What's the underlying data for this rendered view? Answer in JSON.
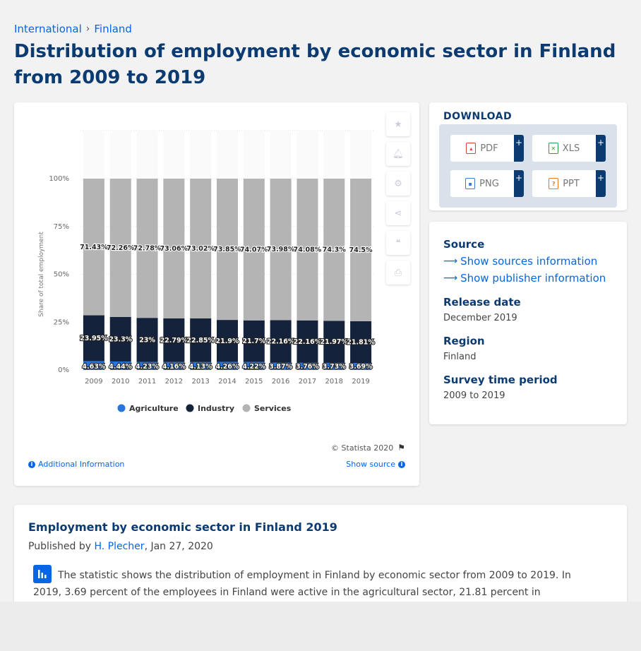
{
  "breadcrumb": {
    "items": [
      "International",
      "Finland"
    ],
    "separator": "›"
  },
  "page_title": "Distribution of employment by economic sector in Finland from 2009 to 2019",
  "chart_data": {
    "type": "bar",
    "stacked": true,
    "title": "",
    "xlabel": "",
    "ylabel": "Share of total employment",
    "ylim": [
      0,
      100
    ],
    "y_ticks": [
      "0%",
      "25%",
      "50%",
      "75%",
      "100%"
    ],
    "categories": [
      "2009",
      "2010",
      "2011",
      "2012",
      "2013",
      "2014",
      "2015",
      "2016",
      "2017",
      "2018",
      "2019"
    ],
    "series": [
      {
        "name": "Agriculture",
        "color": "#2876dd",
        "values": [
          4.63,
          4.44,
          4.23,
          4.16,
          4.13,
          4.26,
          4.22,
          3.87,
          3.76,
          3.73,
          3.69
        ],
        "labels": [
          "4.63%",
          "4.44%",
          "4.23%",
          "4.16%",
          "4.13%",
          "4.26%",
          "4.22%",
          "3.87%",
          "3.76%",
          "3.73%",
          "3.69%"
        ]
      },
      {
        "name": "Industry",
        "color": "#14223c",
        "values": [
          23.95,
          23.3,
          23,
          22.79,
          22.85,
          21.9,
          21.7,
          22.16,
          22.16,
          21.97,
          21.81
        ],
        "labels": [
          "23.95%",
          "23.3%",
          "23%",
          "22.79%",
          "22.85%",
          "21.9%",
          "21.7%",
          "22.16%",
          "22.16%",
          "21.97%",
          "21.81%"
        ]
      },
      {
        "name": "Services",
        "color": "#b4b4b4",
        "values": [
          71.43,
          72.26,
          72.78,
          73.06,
          73.02,
          73.85,
          74.07,
          73.98,
          74.08,
          74.3,
          74.5
        ],
        "labels": [
          "71.43%",
          "72.26%",
          "72.78%",
          "73.06%",
          "73.02%",
          "73.85%",
          "74.07%",
          "73.98%",
          "74.08%",
          "74.3%",
          "74.5%"
        ]
      }
    ],
    "legend": "bottom",
    "grid": true
  },
  "chart_footer": {
    "copyright": "© Statista 2020",
    "additional_info": "Additional Information",
    "show_source": "Show source"
  },
  "download": {
    "title": "DOWNLOAD",
    "buttons": [
      {
        "label": "PDF",
        "icon": "pdf-file-icon",
        "color": "#e0403a"
      },
      {
        "label": "XLS",
        "icon": "xls-file-icon",
        "color": "#2e9b47"
      },
      {
        "label": "PNG",
        "icon": "png-file-icon",
        "color": "#3a7bd5"
      },
      {
        "label": "PPT",
        "icon": "ppt-file-icon",
        "color": "#e57a2b"
      }
    ],
    "plus": "+"
  },
  "info": {
    "source_label": "Source",
    "show_sources": "Show sources information",
    "show_publisher": "Show publisher information",
    "release_label": "Release date",
    "release_value": "December 2019",
    "region_label": "Region",
    "region_value": "Finland",
    "period_label": "Survey time period",
    "period_value": "2009 to 2019"
  },
  "description": {
    "title": "Employment by economic sector in Finland 2019",
    "published_prefix": "Published by",
    "author": "H. Plecher",
    "date": ", Jan 27, 2020",
    "text": "The statistic shows the distribution of employment in Finland by economic sector from 2009 to 2019. In 2019, 3.69 percent of the employees in Finland were active in the agricultural sector, 21.81 percent in"
  },
  "toolbar_icons": [
    "star-icon",
    "bell-icon",
    "gear-icon",
    "share-icon",
    "quote-icon",
    "print-icon"
  ]
}
